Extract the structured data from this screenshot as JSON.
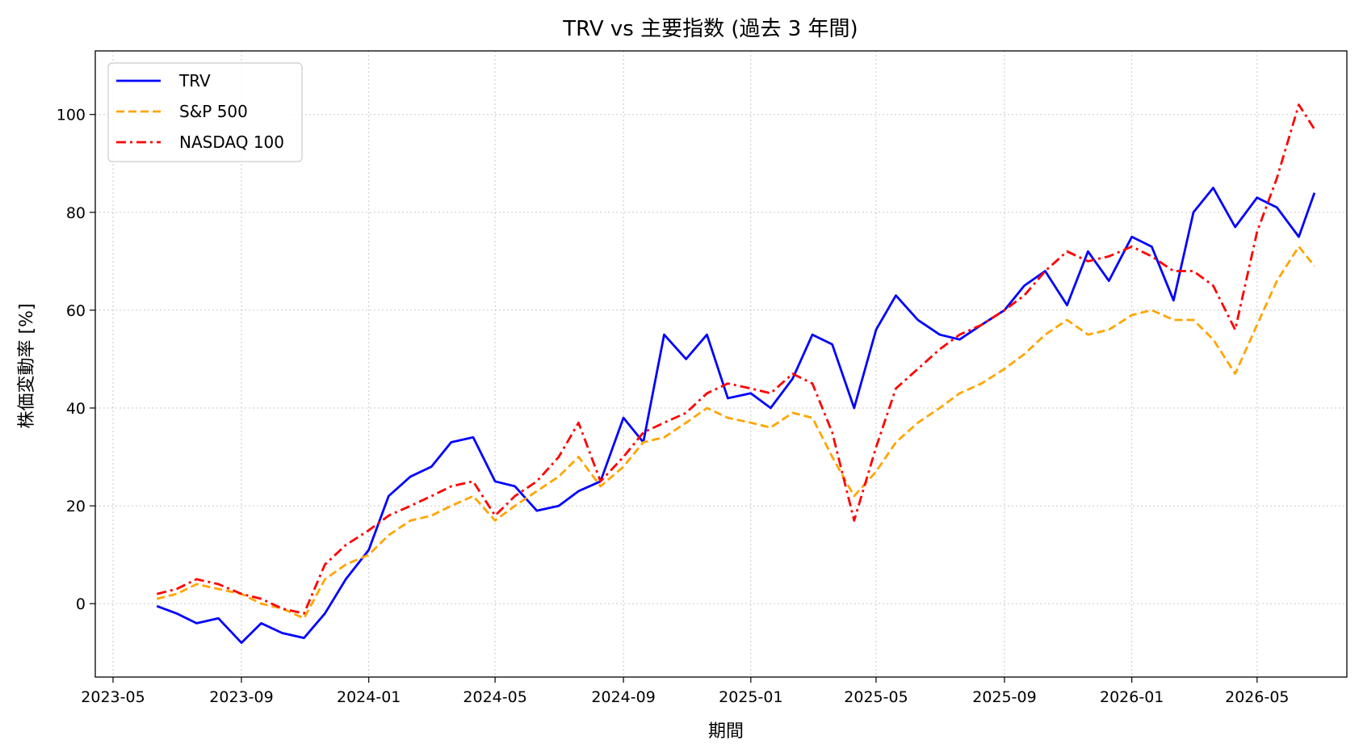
{
  "chart_data": {
    "type": "line",
    "title": "TRV vs 主要指数 (過去 3 年間)",
    "xlabel": "期間",
    "ylabel": "株価変動率 [%]",
    "x_ticks": [
      "2023-05",
      "2023-09",
      "2024-01",
      "2024-05",
      "2024-09",
      "2025-01",
      "2025-05",
      "2025-09",
      "2026-01",
      "2026-05"
    ],
    "y_ticks": [
      0,
      20,
      40,
      60,
      80,
      100
    ],
    "xlim": [
      "2023-04-14",
      "2026-07-26"
    ],
    "ylim": [
      -15,
      113
    ],
    "grid": true,
    "legend_position": "top-left",
    "x": [
      "2023-06-12",
      "2023-07-01",
      "2023-07-20",
      "2023-08-10",
      "2023-09-01",
      "2023-09-20",
      "2023-10-10",
      "2023-10-31",
      "2023-11-20",
      "2023-12-10",
      "2024-01-01",
      "2024-01-20",
      "2024-02-10",
      "2024-03-01",
      "2024-03-20",
      "2024-04-10",
      "2024-05-01",
      "2024-05-20",
      "2024-06-10",
      "2024-07-01",
      "2024-07-20",
      "2024-08-10",
      "2024-09-01",
      "2024-09-20",
      "2024-10-10",
      "2024-10-31",
      "2024-11-20",
      "2024-12-10",
      "2025-01-01",
      "2025-01-20",
      "2025-02-10",
      "2025-03-01",
      "2025-03-20",
      "2025-04-10",
      "2025-05-01",
      "2025-05-20",
      "2025-06-10",
      "2025-07-01",
      "2025-07-20",
      "2025-08-10",
      "2025-09-01",
      "2025-09-20",
      "2025-10-10",
      "2025-10-31",
      "2025-11-20",
      "2025-12-10",
      "2026-01-01",
      "2026-01-20",
      "2026-02-10",
      "2026-03-01",
      "2026-03-20",
      "2026-04-10",
      "2026-05-01",
      "2026-05-20",
      "2026-06-10",
      "2026-06-25"
    ],
    "series": [
      {
        "name": "TRV",
        "color": "#0000ff",
        "style": "solid",
        "values": [
          -0.5,
          -2,
          -4,
          -3,
          -8,
          -4,
          -6,
          -7,
          -2,
          5,
          11,
          22,
          26,
          28,
          33,
          34,
          25,
          24,
          19,
          20,
          23,
          25,
          38,
          33,
          55,
          50,
          55,
          42,
          43,
          40,
          46,
          55,
          53,
          40,
          56,
          63,
          58,
          55,
          54,
          57,
          60,
          65,
          68,
          61,
          72,
          66,
          75,
          73,
          62,
          80,
          85,
          77,
          83,
          81,
          75,
          84
        ]
      },
      {
        "name": "S&P 500",
        "color": "#ffa500",
        "style": "dashed",
        "values": [
          1,
          2,
          4,
          3,
          2,
          0,
          -1,
          -3,
          5,
          8,
          10,
          14,
          17,
          18,
          20,
          22,
          17,
          20,
          23,
          26,
          30,
          24,
          28,
          33,
          34,
          37,
          40,
          38,
          37,
          36,
          39,
          38,
          30,
          22,
          27,
          33,
          37,
          40,
          43,
          45,
          48,
          51,
          55,
          58,
          55,
          56,
          59,
          60,
          58,
          58,
          54,
          47,
          57,
          66,
          73,
          69
        ]
      },
      {
        "name": "NASDAQ 100",
        "color": "#ff0000",
        "style": "dashdot",
        "values": [
          2,
          3,
          5,
          4,
          2,
          1,
          -1,
          -2,
          8,
          12,
          15,
          18,
          20,
          22,
          24,
          25,
          18,
          22,
          25,
          30,
          37,
          25,
          30,
          35,
          37,
          39,
          43,
          45,
          44,
          43,
          47,
          45,
          35,
          17,
          32,
          44,
          48,
          52,
          55,
          57,
          60,
          63,
          68,
          72,
          70,
          71,
          73,
          71,
          68,
          68,
          65,
          56,
          76,
          87,
          102,
          97
        ]
      }
    ]
  }
}
